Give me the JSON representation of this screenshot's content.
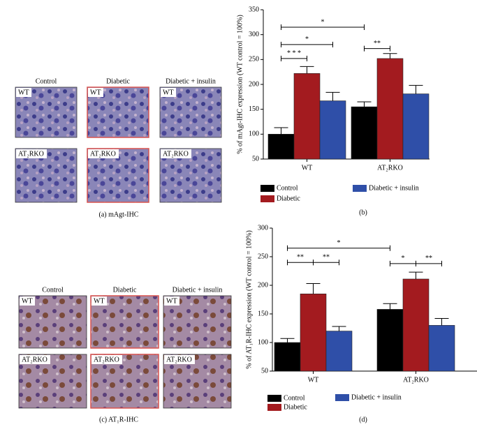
{
  "figure_panels": [
    {
      "caption": "(a) mAgt-IHC",
      "columns": [
        "Control",
        "Diabetic",
        "Diabetic + insulin"
      ],
      "rows": [
        "WT",
        "AT₂RKO"
      ]
    },
    {
      "caption": "(c) AT₁R-IHC",
      "columns": [
        "Control",
        "Diabetic",
        "Diabetic + insulin"
      ],
      "rows": [
        "WT",
        "AT₂RKO"
      ]
    }
  ],
  "chart_data": [
    {
      "type": "bar",
      "caption": "(b)",
      "y_label": "% of mAgt-IHC expression (WT control = 100%)",
      "categories": [
        "WT",
        "AT₂RKO"
      ],
      "ylim": [
        50,
        350
      ],
      "yticks": [
        50,
        100,
        150,
        200,
        250,
        300,
        350
      ],
      "series": [
        {
          "name": "Control",
          "color": "#000000",
          "values": [
            100,
            155
          ],
          "errors": [
            13,
            10
          ]
        },
        {
          "name": "Diabetic",
          "color": "#a31b1f",
          "values": [
            222,
            252
          ],
          "errors": [
            14,
            10
          ]
        },
        {
          "name": "Diabetic + insulin",
          "color": "#2f4fa8",
          "values": [
            167,
            181
          ],
          "errors": [
            17,
            17
          ]
        }
      ],
      "annotations": [
        {
          "text": "*",
          "y": 315
        },
        {
          "text": "*",
          "y": 280
        },
        {
          "text": "* * *",
          "y": 252
        },
        {
          "text": "**",
          "y": 272
        }
      ]
    },
    {
      "type": "bar",
      "caption": "(d)",
      "y_label": "% of AT₁R-IHC expression (WT control = 100%)",
      "categories": [
        "WT",
        "AT₂RKO"
      ],
      "ylim": [
        50,
        300
      ],
      "yticks": [
        50,
        100,
        150,
        200,
        250,
        300
      ],
      "series": [
        {
          "name": "Control",
          "color": "#000000",
          "values": [
            100,
            158
          ],
          "errors": [
            7,
            10
          ]
        },
        {
          "name": "Diabetic",
          "color": "#a31b1f",
          "values": [
            185,
            211
          ],
          "errors": [
            18,
            12
          ]
        },
        {
          "name": "Diabetic + insulin",
          "color": "#2f4fa8",
          "values": [
            120,
            130
          ],
          "errors": [
            8,
            12
          ]
        }
      ],
      "annotations": [
        {
          "text": "*",
          "y": 265
        },
        {
          "text": "**",
          "y": 240
        },
        {
          "text": "**",
          "y": 240
        },
        {
          "text": "*",
          "y": 238
        },
        {
          "text": "**",
          "y": 238
        }
      ]
    }
  ]
}
